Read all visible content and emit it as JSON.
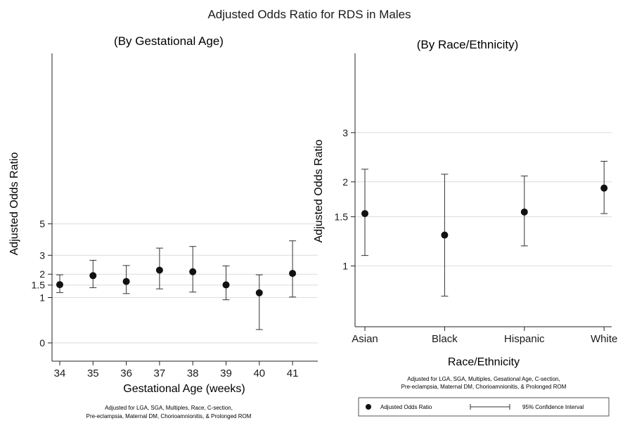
{
  "figure_title": "Adjusted Odds Ratio for RDS in Males",
  "colors": {
    "marker": "#111111",
    "error_bar": "#333333",
    "grid": "#dcdcdc",
    "axis": "#222222"
  },
  "chart_data": [
    {
      "type": "scatter",
      "subtitle": "(By Gestational Age)",
      "xlabel": "Gestational Age (weeks)",
      "ylabel": "Adjusted Odds Ratio",
      "x": [
        "34",
        "35",
        "36",
        "37",
        "38",
        "39",
        "40",
        "41"
      ],
      "y": [
        1.52,
        1.93,
        1.66,
        2.2,
        2.12,
        1.51,
        1.18,
        2.04
      ],
      "ci_low": [
        1.19,
        1.39,
        1.15,
        1.34,
        1.21,
        0.92,
        0.13,
        1.02
      ],
      "ci_high": [
        1.97,
        2.72,
        2.44,
        3.42,
        3.52,
        2.42,
        1.97,
        3.87
      ],
      "y_ticks": [
        "0",
        "1",
        "1.5",
        "2",
        "3",
        "5"
      ],
      "grid": true,
      "footnote": [
        "Adjusted for LGA, SGA, Multiples, Race, C-section,",
        "Pre-eclampsia, Maternal DM, Chorioamnionitis, & Prolonged ROM"
      ]
    },
    {
      "type": "scatter",
      "subtitle": "(By Race/Ethnicity)",
      "xlabel": "Race/Ethnicity",
      "ylabel": "Adjusted Odds Ratio",
      "x": [
        "Asian",
        "Black",
        "Hispanic",
        "White"
      ],
      "y": [
        1.54,
        1.29,
        1.56,
        1.9
      ],
      "ci_low": [
        1.09,
        0.78,
        1.18,
        1.54
      ],
      "ci_high": [
        2.22,
        2.13,
        2.1,
        2.37
      ],
      "y_ticks": [
        "1",
        "1.5",
        "2",
        "3"
      ],
      "grid": true,
      "footnote": [
        "Adjusted for LGA, SGA, Multiples, Gesational Age, C-section,",
        "Pre-eclampsia, Maternal DM, Chorioamnionitis, & Prolonged ROM"
      ]
    }
  ],
  "legend": {
    "position": "bottom-right",
    "marker_label": "Adjusted Odds Ratio",
    "ci_label": "95% Confidence Interval"
  }
}
